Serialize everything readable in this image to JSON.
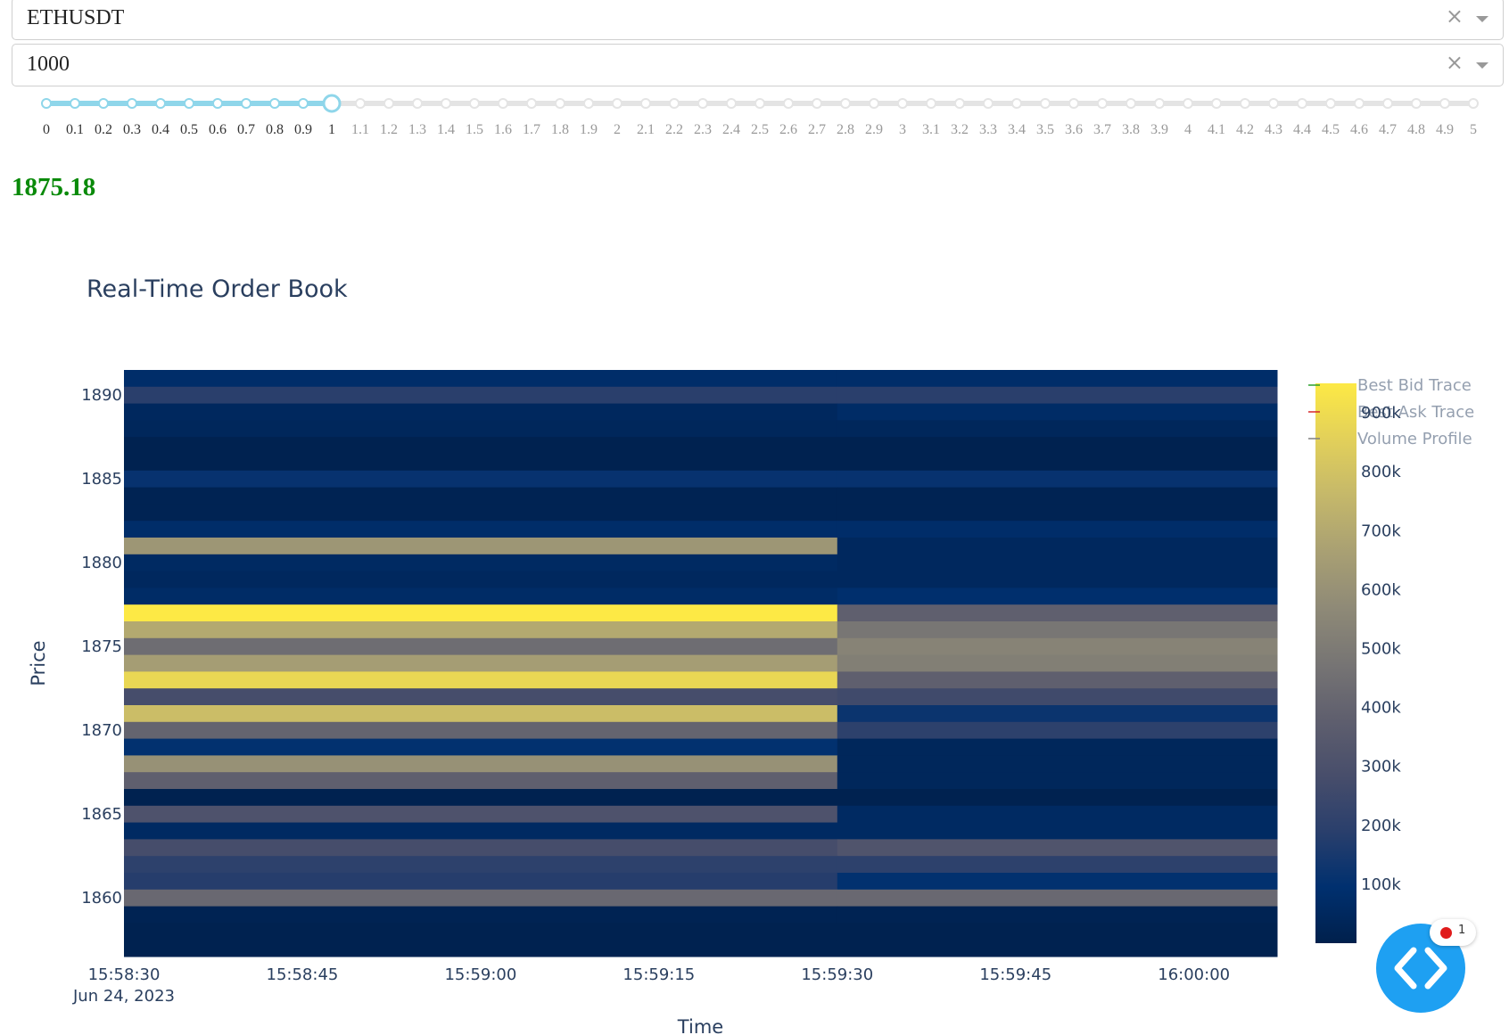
{
  "symbol_dropdown": {
    "value": "ETHUSDT",
    "clear_icon": "close-icon",
    "caret_icon": "chevron-down-icon"
  },
  "depth_dropdown": {
    "value": "1000",
    "clear_icon": "close-icon",
    "caret_icon": "chevron-down-icon"
  },
  "slider": {
    "min": 0,
    "max": 5,
    "step": 0.1,
    "value": 1,
    "marks": [
      "0",
      "0.1",
      "0.2",
      "0.3",
      "0.4",
      "0.5",
      "0.6",
      "0.7",
      "0.8",
      "0.9",
      "1",
      "1.1",
      "1.2",
      "1.3",
      "1.4",
      "1.5",
      "1.6",
      "1.7",
      "1.8",
      "1.9",
      "2",
      "2.1",
      "2.2",
      "2.3",
      "2.4",
      "2.5",
      "2.6",
      "2.7",
      "2.8",
      "2.9",
      "3",
      "3.1",
      "3.2",
      "3.3",
      "3.4",
      "3.5",
      "3.6",
      "3.7",
      "3.8",
      "3.9",
      "4",
      "4.1",
      "4.2",
      "4.3",
      "4.4",
      "4.5",
      "4.6",
      "4.7",
      "4.8",
      "4.9",
      "5"
    ],
    "colors": {
      "active": "#8fd6ea",
      "inactive": "#e4e4e4",
      "handle": "#8fd6ea"
    }
  },
  "current_price": "1875.18",
  "current_price_color": "#0a8a0a",
  "chart_data": {
    "type": "heatmap",
    "title": "Real-Time Order Book",
    "xlabel": "Time",
    "ylabel": "Price",
    "x_ticks": [
      "15:58:30",
      "15:58:45",
      "15:59:00",
      "15:59:15",
      "15:59:30",
      "15:59:45",
      "16:00:00"
    ],
    "x_tick_subtitle": "Jun 24, 2023",
    "x_range": [
      "15:58:30",
      "16:00:07"
    ],
    "y_ticks": [
      1860,
      1865,
      1870,
      1875,
      1880,
      1885,
      1890
    ],
    "y_range": [
      1856.5,
      1891.5
    ],
    "colorbar": {
      "ticks": [
        "100k",
        "200k",
        "300k",
        "400k",
        "500k",
        "600k",
        "700k",
        "800k",
        "900k"
      ],
      "range": [
        0,
        950000
      ]
    },
    "colorscale": "cividis",
    "legend": [
      "Best Bid Trace",
      "Best Ask Trace",
      "Volume Profile"
    ],
    "legend_colors": [
      "#2ca02c",
      "#d62728",
      "#7f7f7f"
    ],
    "time_segments": [
      {
        "start": "15:58:30",
        "end": "15:59:30"
      },
      {
        "start": "15:59:30",
        "end": "16:00:07"
      }
    ],
    "rows": [
      {
        "price": 1891,
        "volumes": [
          80000,
          80000
        ]
      },
      {
        "price": 1890,
        "volumes": [
          190000,
          190000
        ]
      },
      {
        "price": 1889,
        "volumes": [
          50000,
          70000
        ]
      },
      {
        "price": 1888,
        "volumes": [
          40000,
          40000
        ]
      },
      {
        "price": 1887,
        "volumes": [
          10000,
          10000
        ]
      },
      {
        "price": 1886,
        "volumes": [
          10000,
          10000
        ]
      },
      {
        "price": 1885,
        "volumes": [
          110000,
          110000
        ]
      },
      {
        "price": 1884,
        "volumes": [
          20000,
          20000
        ]
      },
      {
        "price": 1883,
        "volumes": [
          20000,
          20000
        ]
      },
      {
        "price": 1882,
        "volumes": [
          80000,
          80000
        ]
      },
      {
        "price": 1881,
        "volumes": [
          620000,
          50000
        ]
      },
      {
        "price": 1880,
        "volumes": [
          60000,
          50000
        ]
      },
      {
        "price": 1879,
        "volumes": [
          50000,
          50000
        ]
      },
      {
        "price": 1878,
        "volumes": [
          70000,
          90000
        ]
      },
      {
        "price": 1877,
        "volumes": [
          950000,
          380000
        ]
      },
      {
        "price": 1876,
        "volumes": [
          700000,
          480000
        ]
      },
      {
        "price": 1875,
        "volumes": [
          440000,
          540000
        ]
      },
      {
        "price": 1874,
        "volumes": [
          650000,
          520000
        ]
      },
      {
        "price": 1873,
        "volumes": [
          880000,
          380000
        ]
      },
      {
        "price": 1872,
        "volumes": [
          280000,
          260000
        ]
      },
      {
        "price": 1871,
        "volumes": [
          780000,
          120000
        ]
      },
      {
        "price": 1870,
        "volumes": [
          400000,
          200000
        ]
      },
      {
        "price": 1869,
        "volumes": [
          100000,
          40000
        ]
      },
      {
        "price": 1868,
        "volumes": [
          600000,
          40000
        ]
      },
      {
        "price": 1867,
        "volumes": [
          380000,
          40000
        ]
      },
      {
        "price": 1866,
        "volumes": [
          10000,
          10000
        ]
      },
      {
        "price": 1865,
        "volumes": [
          310000,
          60000
        ]
      },
      {
        "price": 1864,
        "volumes": [
          60000,
          60000
        ]
      },
      {
        "price": 1863,
        "volumes": [
          280000,
          320000
        ]
      },
      {
        "price": 1862,
        "volumes": [
          200000,
          200000
        ]
      },
      {
        "price": 1861,
        "volumes": [
          180000,
          100000
        ]
      },
      {
        "price": 1860,
        "volumes": [
          420000,
          420000
        ]
      },
      {
        "price": 1859,
        "volumes": [
          20000,
          20000
        ]
      },
      {
        "price": 1858,
        "volumes": [
          10000,
          10000
        ]
      },
      {
        "price": 1857,
        "volumes": [
          10000,
          10000
        ]
      }
    ]
  },
  "fab": {
    "icon": "code-brackets-icon",
    "badge_count": "1",
    "color": "#1ea0f2"
  }
}
